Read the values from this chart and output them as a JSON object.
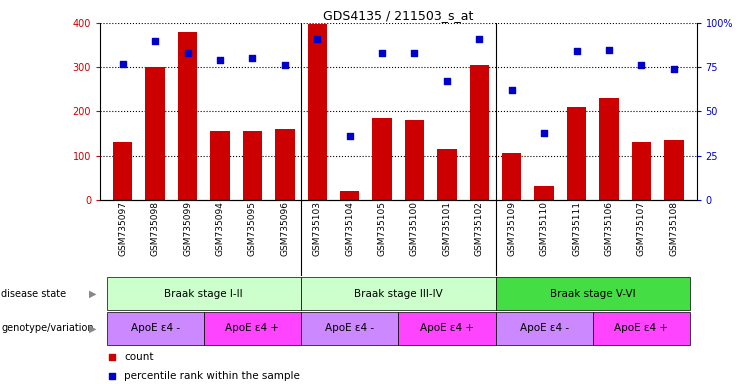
{
  "title": "GDS4135 / 211503_s_at",
  "samples": [
    "GSM735097",
    "GSM735098",
    "GSM735099",
    "GSM735094",
    "GSM735095",
    "GSM735096",
    "GSM735103",
    "GSM735104",
    "GSM735105",
    "GSM735100",
    "GSM735101",
    "GSM735102",
    "GSM735109",
    "GSM735110",
    "GSM735111",
    "GSM735106",
    "GSM735107",
    "GSM735108"
  ],
  "counts": [
    130,
    300,
    380,
    155,
    155,
    160,
    398,
    20,
    185,
    180,
    115,
    305,
    105,
    30,
    210,
    230,
    130,
    135
  ],
  "percentile": [
    77,
    90,
    83,
    79,
    80,
    76,
    91,
    36,
    83,
    83,
    67,
    91,
    62,
    38,
    84,
    85,
    76,
    74
  ],
  "disease_state_list": [
    {
      "label": "Braak stage I-II",
      "start": 0,
      "end": 6,
      "color": "#ccffcc"
    },
    {
      "label": "Braak stage III-IV",
      "start": 6,
      "end": 12,
      "color": "#ccffcc"
    },
    {
      "label": "Braak stage V-VI",
      "start": 12,
      "end": 18,
      "color": "#44dd44"
    }
  ],
  "genotype_list": [
    {
      "label": "ApoE ε4 -",
      "start": 0,
      "end": 3,
      "color": "#cc88ff"
    },
    {
      "label": "ApoE ε4 +",
      "start": 3,
      "end": 6,
      "color": "#ff44ff"
    },
    {
      "label": "ApoE ε4 -",
      "start": 6,
      "end": 9,
      "color": "#cc88ff"
    },
    {
      "label": "ApoE ε4 +",
      "start": 9,
      "end": 12,
      "color": "#ff44ff"
    },
    {
      "label": "ApoE ε4 -",
      "start": 12,
      "end": 15,
      "color": "#cc88ff"
    },
    {
      "label": "ApoE ε4 +",
      "start": 15,
      "end": 18,
      "color": "#ff44ff"
    }
  ],
  "bar_color": "#cc0000",
  "dot_color": "#0000cc",
  "ylim_left": [
    0,
    400
  ],
  "ylim_right": [
    0,
    100
  ],
  "yticks_left": [
    0,
    100,
    200,
    300,
    400
  ],
  "yticks_right": [
    0,
    25,
    50,
    75,
    100
  ],
  "ytick_labels_right": [
    "0",
    "25",
    "50",
    "75",
    "100%"
  ],
  "background_color": "#ffffff",
  "label_disease": "disease state",
  "label_genotype": "genotype/variation",
  "legend_count": "count",
  "legend_percentile": "percentile rank within the sample",
  "xtick_bg": "#cccccc"
}
